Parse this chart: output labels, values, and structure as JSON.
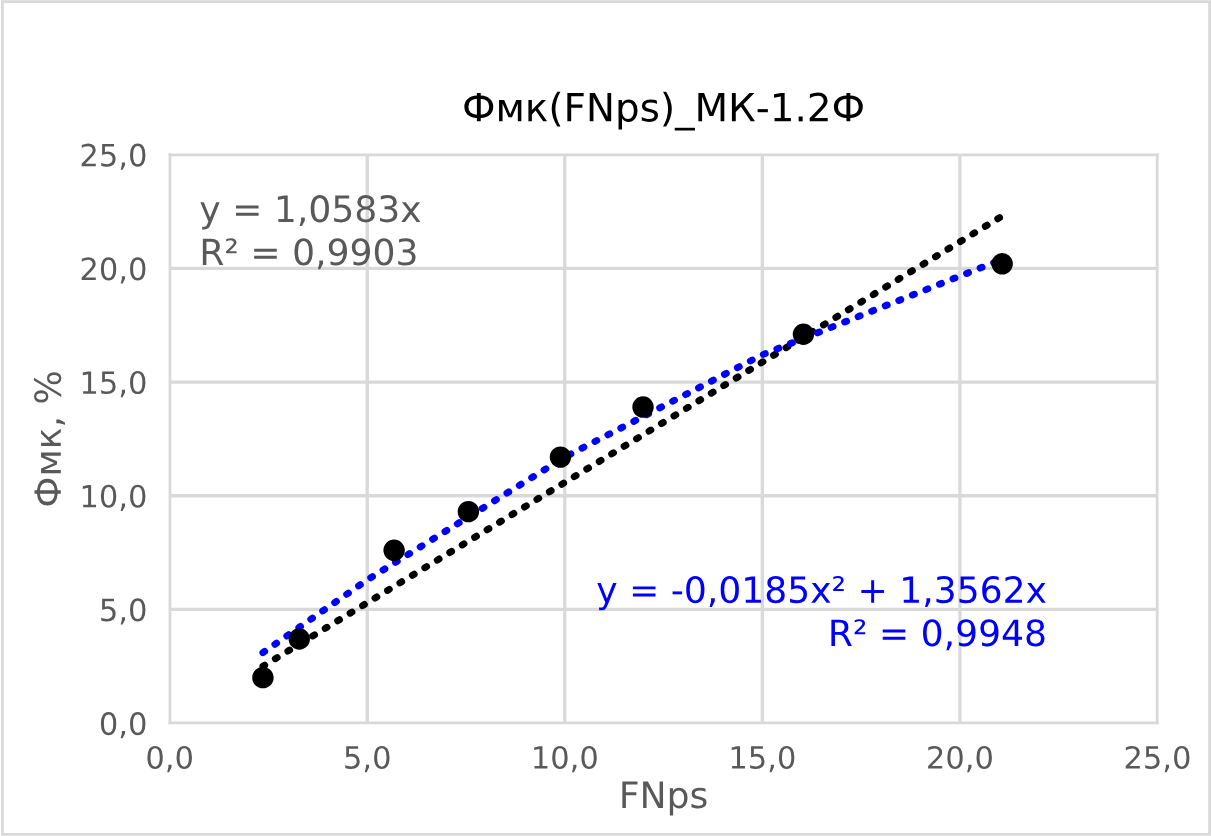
{
  "chart_data": {
    "type": "scatter",
    "title": "Фмк(FNps)_МК-1.2Ф",
    "xlabel": "FNps",
    "ylabel": "Фмк, %",
    "x": [
      2.36,
      3.28,
      5.68,
      7.56,
      9.89,
      11.98,
      16.04,
      21.07
    ],
    "series": [
      {
        "color": "#000000",
        "marker": "circle",
        "values": [
          2.0,
          3.7,
          7.6,
          9.3,
          11.7,
          13.9,
          17.1,
          20.2
        ]
      },
      {
        "type": "line",
        "color": "#000000",
        "line_style": "dotted",
        "x": [
          2.36,
          21.07
        ],
        "values": [
          2.5,
          22.3
        ]
      },
      {
        "type": "line",
        "color": "#0000ff",
        "line_style": "dotted",
        "x": [
          2.36,
          5,
          10,
          15,
          21.07
        ],
        "values": [
          3.1,
          6.3,
          11.7,
          16.2,
          20.4
        ]
      }
    ],
    "annotations": [
      "y = 1,0583x\nR² = 0,9903",
      "y = -0,0185x² + 1,3562x\nR² = 0,9948"
    ],
    "xlim": [
      0,
      25
    ],
    "ylim": [
      0,
      25
    ],
    "xticks": [
      {
        "value": 0,
        "label": "0,0"
      },
      {
        "value": 5,
        "label": "5,0"
      },
      {
        "value": 10,
        "label": "10,0"
      },
      {
        "value": 15,
        "label": "15,0"
      },
      {
        "value": 20,
        "label": "20,0"
      },
      {
        "value": 25,
        "label": "25,0"
      }
    ],
    "yticks": [
      {
        "value": 0,
        "label": "0,0"
      },
      {
        "value": 5,
        "label": "5,0"
      },
      {
        "value": 10,
        "label": "10,0"
      },
      {
        "value": 15,
        "label": "15,0"
      },
      {
        "value": 20,
        "label": "20,0"
      },
      {
        "value": 25,
        "label": "25,0"
      }
    ],
    "grid": true,
    "legend": false
  }
}
